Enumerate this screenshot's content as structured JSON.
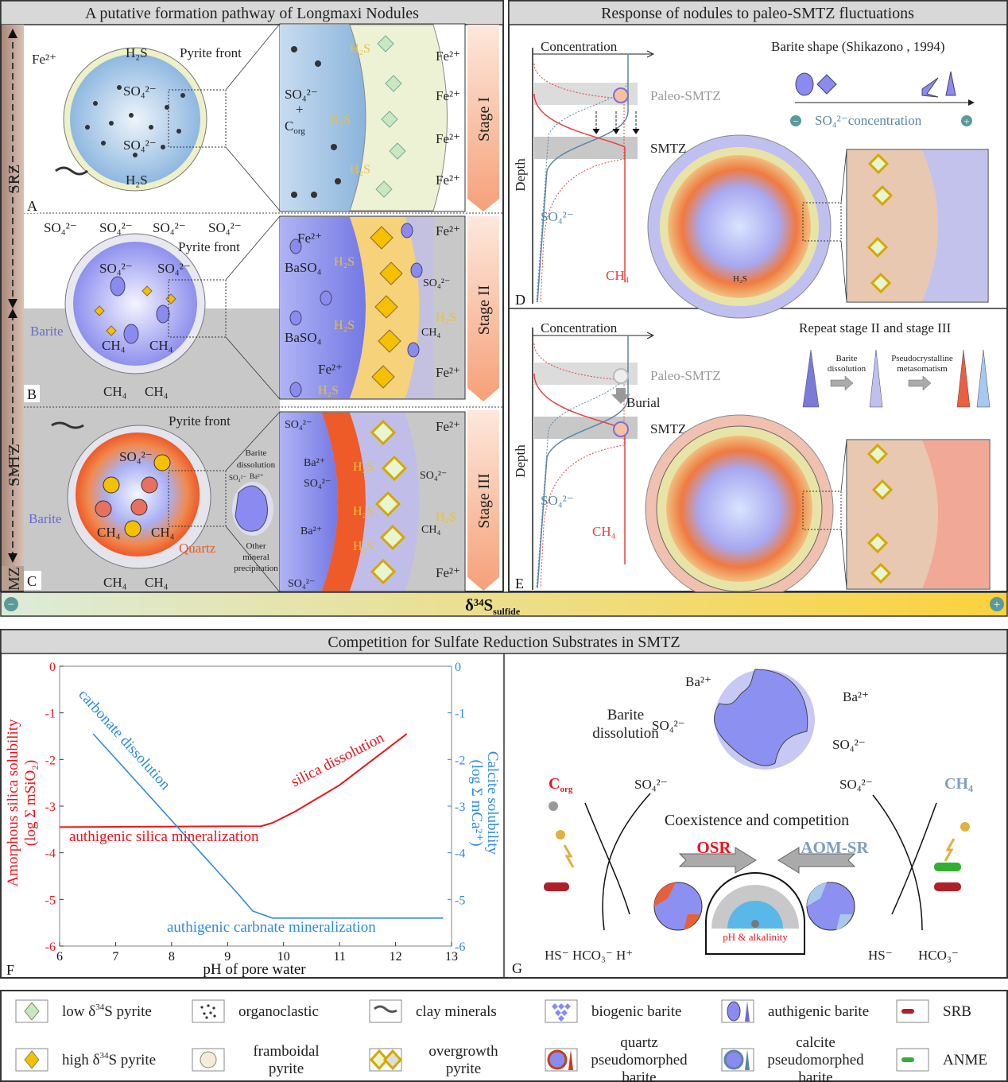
{
  "chem": {
    "fe": "Fe²⁺",
    "h2s": "H₂S",
    "so4": "SO₄²⁻",
    "ch4": "CH₄",
    "ba": "Ba²⁺",
    "baso4": "BaSO₄",
    "hs": "HS⁻",
    "hco3": "HCO₃⁻",
    "h": "H⁺",
    "plus": "+",
    "c": "C",
    "org": "org"
  },
  "left_panel": {
    "title": "A putative formation pathway of Longmaxi Nodules",
    "zones": {
      "srz": "SRZ",
      "smtz": "SMTZ",
      "mz": "MZ"
    },
    "stages": [
      "Stage I",
      "Stage II",
      "Stage III"
    ],
    "panel_letters": {
      "a": "A",
      "b": "B",
      "c": "C"
    },
    "pyrite_front": "Pyrite front",
    "barite": "Barite",
    "quartz": "Quartz",
    "barite_dissolution": [
      "Barite",
      "dissolution"
    ],
    "other_mineral_precipitation": [
      "Other",
      "mineral",
      "precipitation"
    ]
  },
  "right_panel": {
    "title": "Response of nodules to paleo-SMTZ fluctuations",
    "panel_letters": {
      "d": "D",
      "e": "E"
    },
    "concentration": "Concentration",
    "depth": "Depth",
    "paleo_smtz": "Paleo-SMTZ",
    "smtz": "SMTZ",
    "burial": "Burial",
    "barite_shape_title": "Barite shape (Shikazono , 1994)",
    "so4_concentration": "concentration",
    "repeat_title": "Repeat stage II and stage III",
    "barite_dissolution": [
      "Barite",
      "dissolution"
    ],
    "pseudocrystalline": [
      "Pseudocrystalline",
      "metasomatism"
    ]
  },
  "delta_bar": {
    "delta": "δ³⁴S",
    "sub": "sulfide",
    "minus": "−",
    "plus": "+",
    "colors": [
      "#dcebd9",
      "#fcd23c"
    ]
  },
  "bottom_title": "Competition for Sulfate Reduction Substrates in SMTZ",
  "chart_data": {
    "type": "line",
    "panel_letter": "F",
    "xlabel": "pH of pore water",
    "ylabel": [
      "Amorphous silica solubility",
      "(log Σ mSiO₂)"
    ],
    "y2label": [
      "Calcite solubility",
      "(log Σ mCa²⁺)"
    ],
    "xlim": [
      6,
      13
    ],
    "ylim": [
      -6,
      0
    ],
    "y2lim": [
      -6,
      0
    ],
    "xticks": [
      6,
      7,
      8,
      9,
      10,
      11,
      12,
      13
    ],
    "yticks": [
      0,
      -1,
      -2,
      -3,
      -4,
      -5,
      -6
    ],
    "grid": false,
    "series": [
      {
        "axis": "left",
        "color": "#e8141c",
        "points": [
          [
            6.0,
            -3.45
          ],
          [
            9.6,
            -3.43
          ],
          [
            9.8,
            -3.36
          ],
          [
            10.2,
            -3.12
          ],
          [
            11.0,
            -2.55
          ],
          [
            12.2,
            -1.45
          ]
        ]
      },
      {
        "axis": "right",
        "color": "#2e8ae0",
        "points": [
          [
            6.6,
            -1.45
          ],
          [
            9.2,
            -4.9
          ],
          [
            9.45,
            -5.25
          ],
          [
            9.8,
            -5.4
          ],
          [
            12.85,
            -5.4
          ]
        ]
      }
    ],
    "annotations": {
      "silica_dissolution": "silica dissolution",
      "silica_mineralization": "authigenic silica mineralization",
      "carbonate_dissolution": "carbonate dissolution",
      "carbonate_mineralization": "authigenic carbnate mineralization"
    }
  },
  "panel_g": {
    "letter": "G",
    "barite_dissolution": [
      "Barite",
      "dissolution"
    ],
    "coexistence": "Coexistence and competition",
    "osr": "OSR",
    "aom_sr": "AOM-SR",
    "ph_alkalinity": "pH & alkalinity",
    "colors": {
      "osr": "#e8141c",
      "aom": "#7f9fbf"
    }
  },
  "legend": {
    "items": [
      {
        "pre": "low δ",
        "sup": "34",
        "post": "S pyrite"
      },
      {
        "label": "organoclastic"
      },
      {
        "label": "clay minerals"
      },
      {
        "label": "biogenic barite"
      },
      {
        "label": "authigenic barite"
      },
      {
        "label": "SRB"
      },
      {
        "pre": "high δ",
        "sup": "34",
        "post": "S pyrite"
      },
      {
        "lines": [
          "framboidal",
          "pyrite"
        ]
      },
      {
        "lines": [
          "overgrowth",
          "pyrite"
        ]
      },
      {
        "lines": [
          "quartz",
          "pseudomorphed",
          "barite"
        ]
      },
      {
        "lines": [
          "calcite",
          "pseudomorphed",
          "barite"
        ]
      },
      {
        "label": "ANME"
      }
    ]
  }
}
